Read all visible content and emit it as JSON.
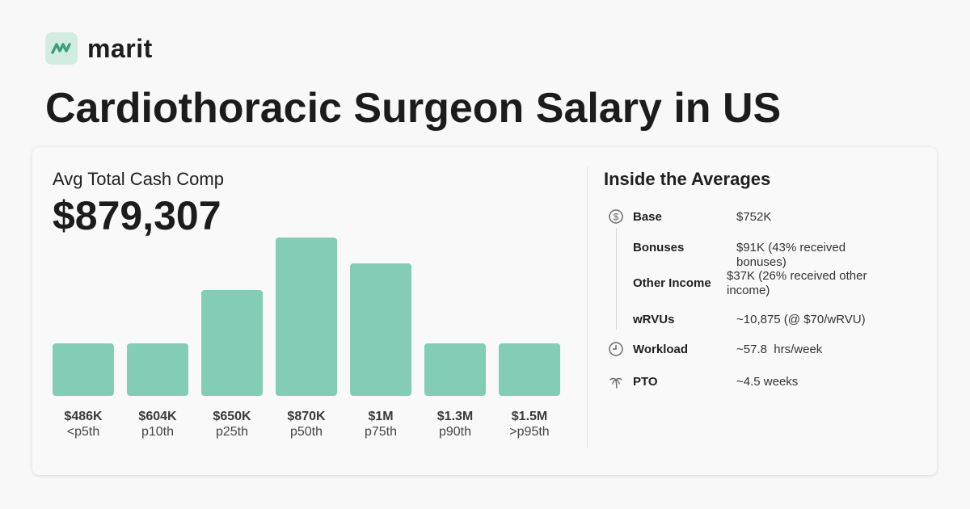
{
  "brand": {
    "name": "marit"
  },
  "page": {
    "title": "Cardiothoracic Surgeon Salary in US"
  },
  "summary": {
    "label": "Avg Total Cash Comp",
    "value": "$879,307"
  },
  "colors": {
    "bar": "#83cdb6",
    "logo_bg": "#d2ece2",
    "logo_mark": "#3aa27a"
  },
  "distribution": [
    {
      "amount": "$486K",
      "percentile": "<p5th"
    },
    {
      "amount": "$604K",
      "percentile": "p10th"
    },
    {
      "amount": "$650K",
      "percentile": "p25th"
    },
    {
      "amount": "$870K",
      "percentile": "p50th"
    },
    {
      "amount": "$1M",
      "percentile": "p75th"
    },
    {
      "amount": "$1.3M",
      "percentile": "p90th"
    },
    {
      "amount": "$1.5M",
      "percentile": ">p95th"
    }
  ],
  "chart_data": {
    "type": "bar",
    "categories": [
      "<p5th",
      "p10th",
      "p25th",
      "p50th",
      "p75th",
      "p90th",
      ">p95th"
    ],
    "category_amounts": [
      "$486K",
      "$604K",
      "$650K",
      "$870K",
      "$1M",
      "$1.3M",
      "$1.5M"
    ],
    "values": [
      1,
      1,
      2,
      3,
      2.5,
      1,
      1
    ],
    "title": "",
    "xlabel": "",
    "ylabel": "",
    "grid": false
  },
  "averages": {
    "title": "Inside the Averages",
    "rows": [
      {
        "label": "Base",
        "value": "$752K",
        "icon": "dollar-circle-icon"
      },
      {
        "label": "Bonuses",
        "value": "$91K (43% received bonuses)",
        "icon": ""
      },
      {
        "label": "Other Income",
        "value": "$37K (26% received other income)",
        "icon": ""
      },
      {
        "label": "wRVUs",
        "value": "~10,875 (@ $70/wRVU)",
        "icon": ""
      },
      {
        "label": "Workload",
        "value": "~57.8  hrs/week",
        "icon": "clock-icon"
      },
      {
        "label": "PTO",
        "value": "~4.5 weeks",
        "icon": "palm-tree-icon"
      }
    ]
  }
}
